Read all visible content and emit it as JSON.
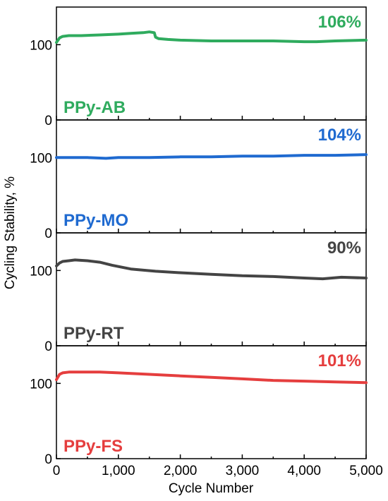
{
  "chart_data": {
    "type": "line",
    "xlabel": "Cycle Number",
    "ylabel": "Cycling Stability, %",
    "xlim": [
      0,
      5000
    ],
    "ylim": [
      0,
      150
    ],
    "x_ticks": [
      0,
      1000,
      2000,
      3000,
      4000,
      5000
    ],
    "x_tick_labels": [
      "0",
      "1,000",
      "2,000",
      "3,000",
      "4,000",
      "5,000"
    ],
    "y_ticks": [
      0,
      100
    ],
    "y_tick_labels": [
      "0",
      "100"
    ],
    "grid": false,
    "series": [
      {
        "name": "PPy-AB",
        "color": "#2fab5e",
        "final_label": "106%",
        "x": [
          0,
          50,
          100,
          200,
          400,
          700,
          1000,
          1200,
          1400,
          1500,
          1580,
          1600,
          1650,
          1800,
          2000,
          2500,
          3000,
          3500,
          4000,
          4200,
          4500,
          5000
        ],
        "y": [
          103,
          109,
          111,
          112,
          112,
          113,
          114,
          115,
          116,
          117,
          116,
          110,
          108,
          107,
          106,
          105,
          105,
          105,
          104,
          104,
          105,
          106
        ]
      },
      {
        "name": "PPy-MO",
        "color": "#1f6ad0",
        "final_label": "104%",
        "x": [
          0,
          200,
          500,
          800,
          1000,
          1500,
          2000,
          2500,
          3000,
          3500,
          4000,
          4500,
          5000
        ],
        "y": [
          100,
          100,
          100,
          99,
          100,
          100,
          101,
          101,
          102,
          102,
          103,
          103,
          104
        ]
      },
      {
        "name": "PPy-RT",
        "color": "#444444",
        "final_label": "90%",
        "x": [
          0,
          50,
          100,
          200,
          300,
          500,
          700,
          900,
          1200,
          1600,
          2000,
          2500,
          3000,
          3500,
          4000,
          4300,
          4600,
          5000
        ],
        "y": [
          106,
          110,
          112,
          113,
          114,
          113,
          111,
          107,
          102,
          99,
          97,
          95,
          93,
          92,
          90,
          89,
          91,
          90
        ]
      },
      {
        "name": "PPy-FS",
        "color": "#e53e3e",
        "final_label": "101%",
        "x": [
          0,
          50,
          100,
          200,
          400,
          700,
          1000,
          1500,
          2000,
          2500,
          3000,
          3500,
          4000,
          4500,
          5000
        ],
        "y": [
          105,
          112,
          114,
          115,
          115,
          115,
          114,
          112,
          110,
          108,
          106,
          104,
          103,
          102,
          101
        ]
      }
    ]
  }
}
